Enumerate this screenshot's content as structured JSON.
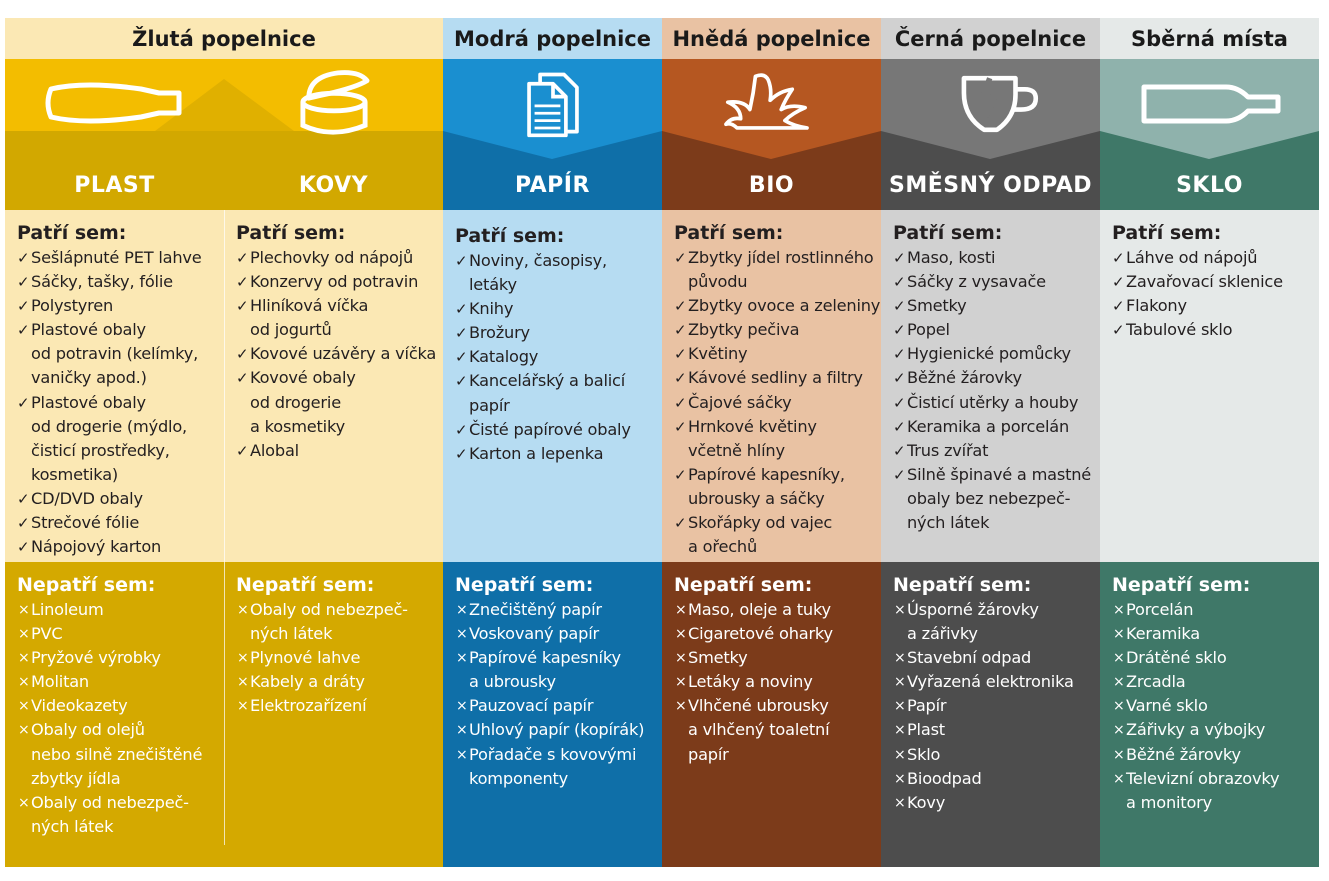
{
  "headers": {
    "zluta": "Žlutá popelnice",
    "modra": "Modrá popelnice",
    "hneda": "Hnědá popelnice",
    "cerna": "Černá popelnice",
    "sberna": "Sběrná místa"
  },
  "colors": {
    "yellow_light": "#fbe8b4",
    "yellow_band": "#f3bd00",
    "yellow_band_dark": "#d2a800",
    "yellow_no": "#d4a900",
    "blue_light": "#b6dcf2",
    "blue_band": "#1a8fd0",
    "blue_dark": "#0f6fa8",
    "brown_light": "#e9c2a3",
    "brown_band": "#b55721",
    "brown_dark": "#7c3b1a",
    "grey_light": "#d1d1d1",
    "grey_band": "#777777",
    "grey_dark": "#4d4d4d",
    "green_light": "#e5e9e8",
    "green_band": "#8fb2ac",
    "green_dark": "#3f7868"
  },
  "columns": [
    {
      "category": "PLAST",
      "icon": "bottle-icon",
      "yes_title": "Patří sem:",
      "yes": [
        "Sešlápnuté PET lahve",
        "Sáčky, tašky, fólie",
        "Polystyren",
        "Plastové obaly\nod potravin (kelímky,\nvaničky apod.)",
        "Plastové obaly\nod drogerie (mýdlo,\nčisticí prostředky,\nkosmetika)",
        " CD/DVD obaly",
        "Strečové fólie",
        "Nápojový karton"
      ],
      "no_title": "Nepatří sem:",
      "no": [
        "Linoleum",
        "PVC",
        "Pryžové výrobky",
        "Molitan",
        "Videokazety",
        "Obaly od olejů\nnebo silně znečištěné\nzbytky jídla",
        "Obaly od nebezpeč-\nných látek"
      ]
    },
    {
      "category": "KOVY",
      "icon": "can-icon",
      "yes_title": "Patří sem:",
      "yes": [
        "Plechovky od nápojů",
        "Konzervy od potravin",
        "Hliníková víčka\nod jogurtů",
        "Kovové uzávěry a víčka",
        "Kovové obaly\nod drogerie\na kosmetiky",
        "Alobal"
      ],
      "no_title": "Nepatří sem:",
      "no": [
        "Obaly od nebezpeč-\nných látek",
        "Plynové lahve",
        "Kabely a dráty",
        "Elektrozařízení"
      ]
    },
    {
      "category": "PAPÍR",
      "icon": "documents-icon",
      "yes_title": "Patří sem:",
      "yes": [
        "Noviny, časopisy,\nletáky",
        "Knihy",
        "Brožury",
        "Katalogy",
        "Kancelářský a balicí\npapír",
        "Čisté papírové obaly",
        "Karton a lepenka"
      ],
      "no_title": "Nepatří sem:",
      "no": [
        "Znečištěný papír",
        "Voskovaný papír",
        "Papírové kapesníky\na ubrousky",
        "Pauzovací papír",
        "Uhlový papír (kopírák)",
        "Pořadače s kovovými\nkomponenty"
      ]
    },
    {
      "category": "BIO",
      "icon": "banana-peel-icon",
      "yes_title": "Patří sem:",
      "yes": [
        "Zbytky jídel rostlinného\npůvodu",
        "Zbytky ovoce a zeleniny",
        "Zbytky pečiva",
        "Květiny",
        "Kávové sedliny a filtry",
        "Čajové sáčky",
        "Hrnkové květiny\nvčetně hlíny",
        "Papírové kapesníky,\nubrousky a sáčky",
        "Skořápky od vajec\na ořechů"
      ],
      "no_title": "Nepatří sem:",
      "no": [
        "Maso, oleje a tuky",
        "Cigaretové oharky",
        "Smetky",
        "Letáky a noviny",
        "Vlhčené ubrousky\na vlhčený toaletní\npapír"
      ]
    },
    {
      "category": "SMĚSNÝ ODPAD",
      "icon": "broken-cup-icon",
      "yes_title": "Patří sem:",
      "yes": [
        "Maso, kosti",
        "Sáčky z vysavače",
        "Smetky",
        "Popel",
        "Hygienické pomůcky",
        "Běžné žárovky",
        "Čisticí utěrky a houby",
        "Keramika a porcelán",
        "Trus zvířat",
        "Silně špinavé a mastné\nobaly bez nebezpeč-\nných látek"
      ],
      "no_title": "Nepatří sem:",
      "no": [
        "Úsporné žárovky\na zářivky",
        "Stavební odpad",
        "Vyřazená elektronika",
        "Papír",
        "Plast",
        "Sklo",
        "Bioodpad",
        "Kovy"
      ]
    },
    {
      "category": "SKLO",
      "icon": "glass-bottle-icon",
      "yes_title": "Patří sem:",
      "yes": [
        "Láhve od nápojů",
        "Zavařovací sklenice",
        "Flakony",
        "Tabulové sklo"
      ],
      "no_title": "Nepatří sem:",
      "no": [
        "Porcelán",
        "Keramika",
        "Drátěné sklo",
        "Zrcadla",
        "Varné sklo",
        "Zářivky a výbojky",
        "Běžné žárovky",
        "Televizní obrazovky\na monitory"
      ]
    }
  ]
}
